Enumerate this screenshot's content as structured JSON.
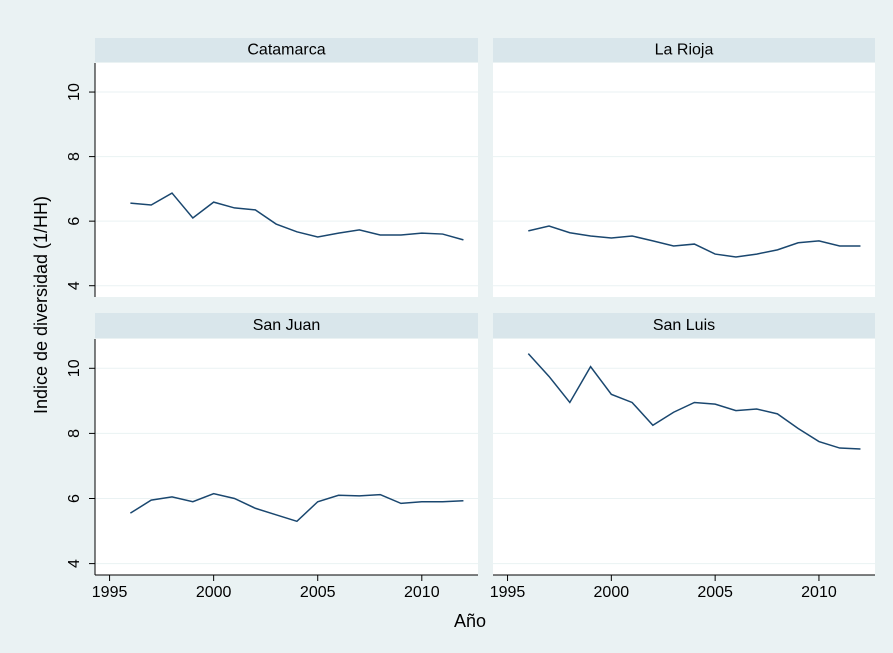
{
  "axis_labels": {
    "x": "Año",
    "y": "Indice de diversidad (1/HH)"
  },
  "chart_data": [
    {
      "type": "line",
      "title": "Catamarca",
      "color": "#1a476f",
      "x": [
        1996,
        1997,
        1998,
        1999,
        2000,
        2001,
        2002,
        2003,
        2004,
        2005,
        2006,
        2007,
        2008,
        2009,
        2010,
        2011,
        2012
      ],
      "values": [
        6.56,
        6.5,
        6.87,
        6.1,
        6.59,
        6.41,
        6.35,
        5.91,
        5.67,
        5.51,
        5.63,
        5.73,
        5.57,
        5.57,
        5.63,
        5.6,
        5.42
      ],
      "xlim": [
        1994.3,
        2012.7
      ],
      "ylim": [
        3.65,
        10.9
      ],
      "yticks": [
        4,
        6,
        8,
        10
      ],
      "ytick_labels": true,
      "grid": true
    },
    {
      "type": "line",
      "title": "La Rioja",
      "color": "#1a476f",
      "x": [
        1996,
        1997,
        1998,
        1999,
        2000,
        2001,
        2002,
        2003,
        2004,
        2005,
        2006,
        2007,
        2008,
        2009,
        2010,
        2011,
        2012
      ],
      "values": [
        5.7,
        5.85,
        5.64,
        5.54,
        5.48,
        5.54,
        5.39,
        5.23,
        5.29,
        4.98,
        4.89,
        4.98,
        5.11,
        5.33,
        5.39,
        5.23,
        5.23
      ],
      "xlim": [
        1994.3,
        2012.7
      ],
      "ylim": [
        3.65,
        10.9
      ],
      "yticks": [
        4,
        6,
        8,
        10
      ],
      "ytick_labels": false,
      "grid": true
    },
    {
      "type": "line",
      "title": "San Juan",
      "color": "#1a476f",
      "x": [
        1996,
        1997,
        1998,
        1999,
        2000,
        2001,
        2002,
        2003,
        2004,
        2005,
        2006,
        2007,
        2008,
        2009,
        2010,
        2011,
        2012
      ],
      "values": [
        5.55,
        5.95,
        6.05,
        5.9,
        6.15,
        6.0,
        5.7,
        5.5,
        5.3,
        5.9,
        6.1,
        6.08,
        6.12,
        5.85,
        5.9,
        5.9,
        5.93
      ],
      "xlim": [
        1994.3,
        2012.7
      ],
      "ylim": [
        3.65,
        10.9
      ],
      "yticks": [
        4,
        6,
        8,
        10
      ],
      "ytick_labels": true,
      "xticks": [
        1995,
        2000,
        2005,
        2010
      ],
      "grid": true
    },
    {
      "type": "line",
      "title": "San Luis",
      "color": "#1a476f",
      "x": [
        1996,
        1997,
        1998,
        1999,
        2000,
        2001,
        2002,
        2003,
        2004,
        2005,
        2006,
        2007,
        2008,
        2009,
        2010,
        2011,
        2012
      ],
      "values": [
        10.45,
        9.75,
        8.95,
        10.05,
        9.2,
        8.95,
        8.25,
        8.65,
        8.95,
        8.9,
        8.7,
        8.75,
        8.6,
        8.15,
        7.75,
        7.55,
        7.52
      ],
      "xlim": [
        1994.3,
        2012.7
      ],
      "ylim": [
        3.65,
        10.9
      ],
      "yticks": [
        4,
        6,
        8,
        10
      ],
      "ytick_labels": false,
      "xticks": [
        1995,
        2000,
        2005,
        2010
      ],
      "grid": true
    }
  ]
}
